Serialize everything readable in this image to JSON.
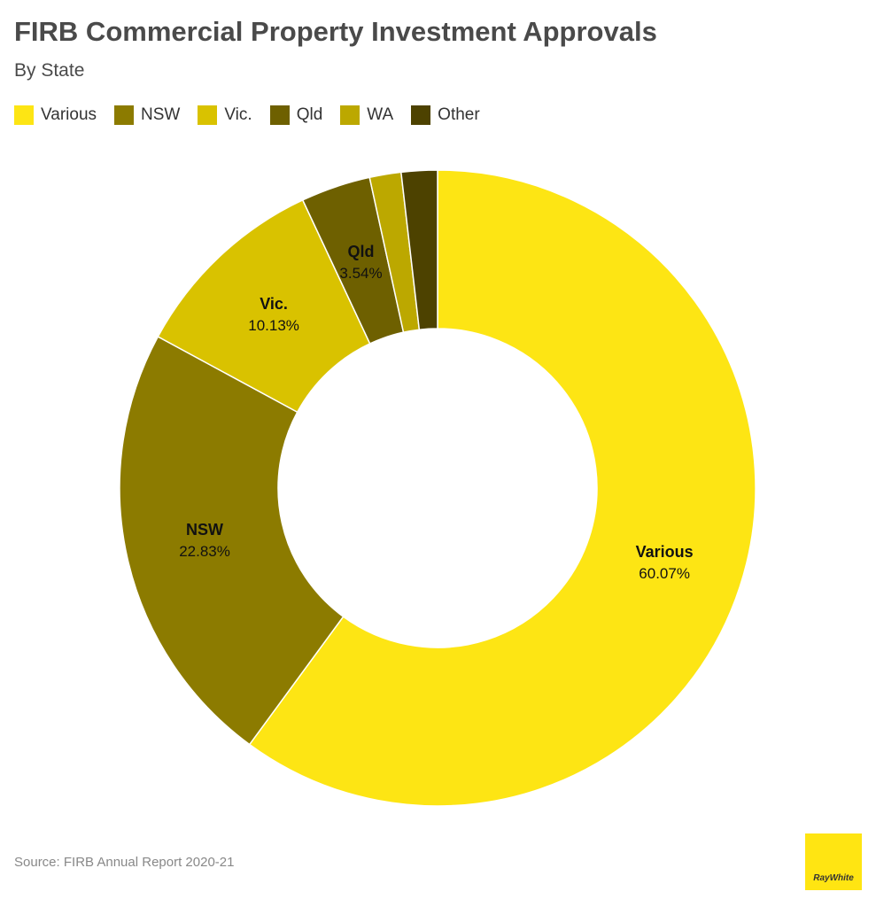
{
  "header": {
    "title": "FIRB Commercial Property Investment Approvals",
    "subtitle": "By State"
  },
  "chart_data": {
    "type": "pie",
    "donut": true,
    "title": "FIRB Commercial Property Investment Approvals",
    "subtitle": "By State",
    "legend_position": "top-left",
    "categories": [
      "Various",
      "NSW",
      "Vic.",
      "Qld",
      "WA",
      "Other"
    ],
    "values": [
      60.07,
      22.83,
      10.13,
      3.54,
      1.6,
      1.83
    ],
    "value_labels": [
      "60.07%",
      "22.83%",
      "10.13%",
      "3.54%",
      "",
      ""
    ],
    "colors": [
      "#fde514",
      "#8c7b00",
      "#d9c200",
      "#6e6000",
      "#bca800",
      "#4d4200"
    ]
  },
  "footer": {
    "source": "Source: FIRB Annual Report 2020-21",
    "logo_text": "RayWhite"
  }
}
